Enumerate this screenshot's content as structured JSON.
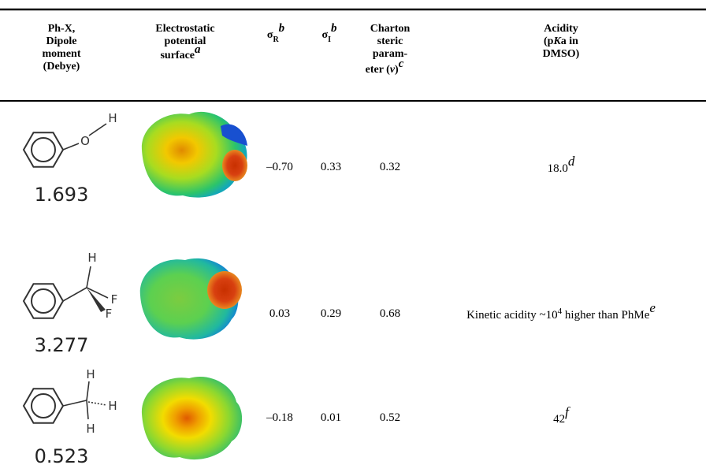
{
  "header": {
    "dipole": [
      "Ph-X,",
      "Dipole",
      "moment",
      "(Debye)"
    ],
    "esp": {
      "lines": [
        "Electrostatic",
        "potential",
        "surface"
      ],
      "note": "a"
    },
    "sigma_r": {
      "symbol": "σ",
      "sub": "R",
      "note": "b"
    },
    "sigma_i": {
      "symbol": "σ",
      "sub": "I",
      "note": "b"
    },
    "charton": {
      "lines": [
        "Charton",
        "steric",
        "param-",
        "eter ("
      ],
      "symbol": "v",
      "close": ")",
      "note": "c"
    },
    "acidity": {
      "line1": "Acidity",
      "open": "(p",
      "k": "K",
      "rest": "a in",
      "line3": "DMSO)"
    }
  },
  "rows": [
    {
      "atoms": [
        "O",
        "H"
      ],
      "dipole": "1.693",
      "sigma_r": "–0.70",
      "sigma_i": "0.33",
      "charton": "0.32",
      "acidity": {
        "text": "18.0",
        "note": "d"
      }
    },
    {
      "atoms": [
        "H",
        "F",
        "F"
      ],
      "dipole": "3.277",
      "sigma_r": "0.03",
      "sigma_i": "0.29",
      "charton": "0.68",
      "acidity": {
        "text": "Kinetic acidity ~10",
        "sup": "4",
        "text2": " higher than PhMe",
        "note": "e"
      }
    },
    {
      "atoms": [
        "H",
        "H",
        "H"
      ],
      "dipole": "0.523",
      "sigma_r": "–0.18",
      "sigma_i": "0.01",
      "charton": "0.52",
      "acidity": {
        "text": "42",
        "note": "f"
      }
    }
  ]
}
